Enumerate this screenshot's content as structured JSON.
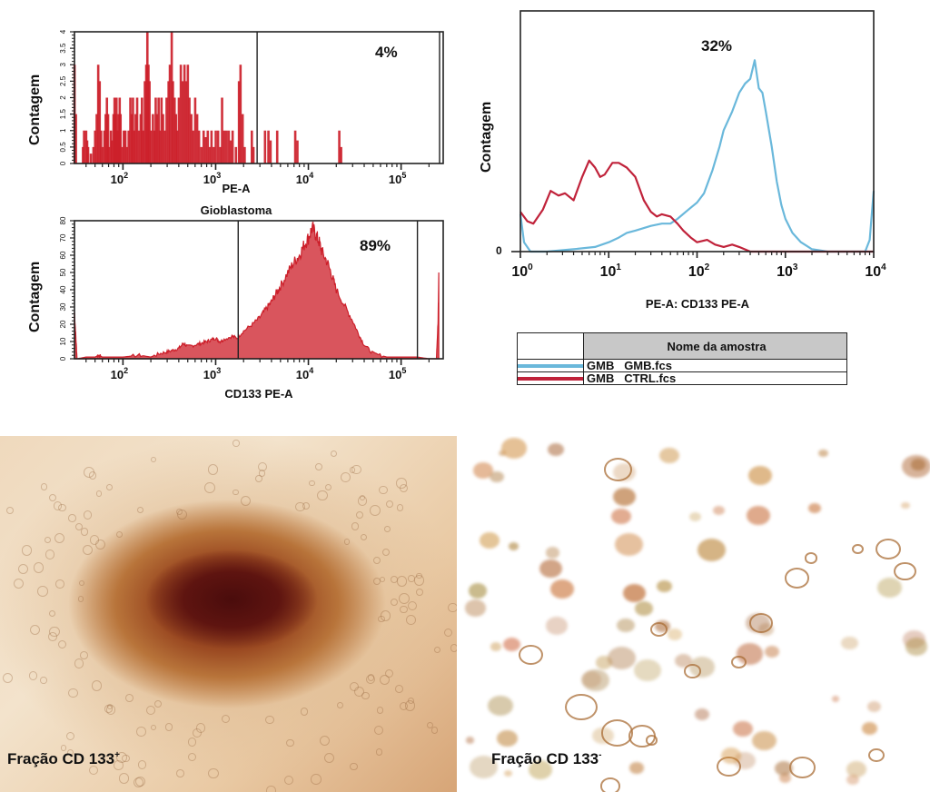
{
  "chart_data": [
    {
      "id": "gioblastoma-isotype",
      "type": "bar",
      "title": "",
      "xlabel": "PE-A",
      "ylabel": "Contagem",
      "x_scale": "log",
      "xlim": [
        30,
        260000
      ],
      "ylim": [
        0,
        4
      ],
      "x_tick_labels": [
        "10",
        "10",
        "10",
        "10"
      ],
      "x_tick_exponents": [
        "2",
        "3",
        "4",
        "5"
      ],
      "x_tick_values": [
        100,
        1000,
        10000,
        100000
      ],
      "y_tick_labels": [
        "0",
        "0.5",
        "1",
        "1.5",
        "2",
        "2.5",
        "3",
        "3.5",
        "4"
      ],
      "gate_start": 2800,
      "gate_label": "4%",
      "color": "#cc1f2a",
      "bins": [
        [
          30,
          3
        ],
        [
          31,
          1.5
        ],
        [
          37,
          0.5
        ],
        [
          38,
          1
        ],
        [
          40,
          1
        ],
        [
          41,
          0.7
        ],
        [
          42,
          0.5
        ],
        [
          45,
          0.3
        ],
        [
          48,
          0.5
        ],
        [
          50,
          1
        ],
        [
          52,
          1.5
        ],
        [
          54,
          3
        ],
        [
          56,
          2.5
        ],
        [
          58,
          1
        ],
        [
          60,
          0.5
        ],
        [
          63,
          1
        ],
        [
          65,
          1.5
        ],
        [
          67,
          2
        ],
        [
          69,
          1.5
        ],
        [
          71,
          0.5
        ],
        [
          74,
          1
        ],
        [
          76,
          0.7
        ],
        [
          79,
          1.5
        ],
        [
          81,
          2
        ],
        [
          83,
          1.5
        ],
        [
          85,
          2
        ],
        [
          87,
          1
        ],
        [
          90,
          1.5
        ],
        [
          92,
          2
        ],
        [
          94,
          1.5
        ],
        [
          98,
          0.5
        ],
        [
          102,
          1
        ],
        [
          106,
          1
        ],
        [
          110,
          0.5
        ],
        [
          115,
          1
        ],
        [
          120,
          2
        ],
        [
          124,
          1.5
        ],
        [
          128,
          2
        ],
        [
          132,
          1
        ],
        [
          137,
          1.5
        ],
        [
          142,
          2
        ],
        [
          148,
          1
        ],
        [
          155,
          1.5
        ],
        [
          160,
          2
        ],
        [
          165,
          1
        ],
        [
          172,
          2.5
        ],
        [
          178,
          3
        ],
        [
          183,
          4
        ],
        [
          188,
          3
        ],
        [
          193,
          2.5
        ],
        [
          200,
          1
        ],
        [
          210,
          1.5
        ],
        [
          218,
          1
        ],
        [
          225,
          2
        ],
        [
          233,
          1.5
        ],
        [
          242,
          2
        ],
        [
          250,
          1
        ],
        [
          260,
          2
        ],
        [
          270,
          1.5
        ],
        [
          282,
          1
        ],
        [
          295,
          2
        ],
        [
          310,
          2.5
        ],
        [
          320,
          3
        ],
        [
          335,
          4
        ],
        [
          345,
          2.5
        ],
        [
          360,
          2
        ],
        [
          372,
          1.5
        ],
        [
          385,
          1
        ],
        [
          400,
          2
        ],
        [
          420,
          3
        ],
        [
          440,
          2.5
        ],
        [
          460,
          3
        ],
        [
          480,
          2.5
        ],
        [
          500,
          3
        ],
        [
          520,
          2
        ],
        [
          545,
          1.5
        ],
        [
          570,
          1
        ],
        [
          600,
          2
        ],
        [
          630,
          1.5
        ],
        [
          660,
          1
        ],
        [
          700,
          0.5
        ],
        [
          740,
          1
        ],
        [
          780,
          0.8
        ],
        [
          820,
          1
        ],
        [
          860,
          0.5
        ],
        [
          900,
          1
        ],
        [
          950,
          0.5
        ],
        [
          1000,
          1
        ],
        [
          1060,
          1
        ],
        [
          1120,
          0.5
        ],
        [
          1170,
          2
        ],
        [
          1230,
          1
        ],
        [
          1300,
          1
        ],
        [
          1380,
          1
        ],
        [
          1450,
          0.7
        ],
        [
          1520,
          1
        ],
        [
          1650,
          0.5
        ],
        [
          1780,
          2.5
        ],
        [
          1850,
          3
        ],
        [
          1950,
          1.5
        ],
        [
          2050,
          0.5
        ],
        [
          2450,
          1
        ],
        [
          2550,
          0.5
        ],
        [
          3400,
          1
        ],
        [
          3700,
          1
        ],
        [
          3900,
          0.7
        ],
        [
          4600,
          1
        ],
        [
          7200,
          1
        ],
        [
          7600,
          0.7
        ],
        [
          21500,
          1
        ],
        [
          22500,
          0.5
        ]
      ]
    },
    {
      "id": "gioblastoma-cd133",
      "type": "area",
      "title": "Gioblastoma",
      "xlabel": "CD133 PE-A",
      "ylabel": "Contagem",
      "x_scale": "log",
      "xlim": [
        30,
        260000
      ],
      "ylim": [
        0,
        80
      ],
      "x_tick_labels": [
        "10",
        "10",
        "10",
        "10"
      ],
      "x_tick_exponents": [
        "2",
        "3",
        "4",
        "5"
      ],
      "x_tick_values": [
        100,
        1000,
        10000,
        100000
      ],
      "y_tick_labels": [
        "0",
        "10",
        "20",
        "30",
        "40",
        "50",
        "60",
        "70",
        "80"
      ],
      "gate_start": 1750,
      "gate_end": 150000,
      "gate_label": "89%",
      "color": "#cc1f2a",
      "fill": "#d9555d",
      "points": [
        [
          30,
          27
        ],
        [
          31,
          13
        ],
        [
          32,
          0
        ],
        [
          40,
          1
        ],
        [
          50,
          1
        ],
        [
          55,
          2
        ],
        [
          60,
          1
        ],
        [
          80,
          1
        ],
        [
          100,
          1
        ],
        [
          150,
          2
        ],
        [
          200,
          1
        ],
        [
          250,
          3
        ],
        [
          300,
          4
        ],
        [
          350,
          5
        ],
        [
          400,
          6
        ],
        [
          450,
          9
        ],
        [
          500,
          7
        ],
        [
          600,
          8
        ],
        [
          700,
          9
        ],
        [
          800,
          10
        ],
        [
          900,
          11
        ],
        [
          1000,
          12
        ],
        [
          1100,
          10
        ],
        [
          1200,
          11
        ],
        [
          1500,
          13
        ],
        [
          1700,
          12
        ],
        [
          2000,
          16
        ],
        [
          2500,
          20
        ],
        [
          3000,
          24
        ],
        [
          3500,
          29
        ],
        [
          4000,
          33
        ],
        [
          4500,
          38
        ],
        [
          5000,
          42
        ],
        [
          6000,
          50
        ],
        [
          7000,
          56
        ],
        [
          8000,
          60
        ],
        [
          9000,
          66
        ],
        [
          10000,
          70
        ],
        [
          11000,
          76
        ],
        [
          12000,
          72
        ],
        [
          13000,
          68
        ],
        [
          14000,
          62
        ],
        [
          16000,
          56
        ],
        [
          18000,
          48
        ],
        [
          20000,
          40
        ],
        [
          25000,
          30
        ],
        [
          30000,
          22
        ],
        [
          35000,
          14
        ],
        [
          40000,
          8
        ],
        [
          50000,
          3
        ],
        [
          70000,
          1
        ],
        [
          100000,
          1
        ],
        [
          150000,
          1
        ],
        [
          200000,
          0
        ],
        [
          240000,
          0
        ],
        [
          250000,
          20
        ],
        [
          255000,
          50
        ]
      ]
    },
    {
      "id": "cd133-overlay",
      "type": "line",
      "title": "",
      "xlabel": "PE-A: CD133 PE-A",
      "ylabel": "Contagem",
      "x_scale": "log",
      "xlim": [
        1,
        10000
      ],
      "ylim": [
        0,
        100
      ],
      "x_tick_labels": [
        "10",
        "10",
        "10",
        "10",
        "10"
      ],
      "x_tick_exponents": [
        "0",
        "1",
        "2",
        "3",
        "4"
      ],
      "x_tick_values": [
        1,
        10,
        100,
        1000,
        10000
      ],
      "y_tick_labels": [
        "0"
      ],
      "gate_label": "32%",
      "series": [
        {
          "name": "GMB GMB.fcs",
          "color": "#6ab8db",
          "points": [
            [
              1,
              16
            ],
            [
              1.1,
              4
            ],
            [
              1.3,
              0
            ],
            [
              2,
              0
            ],
            [
              4,
              1
            ],
            [
              7,
              2
            ],
            [
              10,
              4
            ],
            [
              13,
              6
            ],
            [
              16,
              8
            ],
            [
              20,
              9
            ],
            [
              30,
              11
            ],
            [
              40,
              12
            ],
            [
              50,
              12
            ],
            [
              60,
              14
            ],
            [
              80,
              18
            ],
            [
              100,
              21
            ],
            [
              120,
              25
            ],
            [
              150,
              35
            ],
            [
              180,
              45
            ],
            [
              200,
              52
            ],
            [
              250,
              60
            ],
            [
              300,
              68
            ],
            [
              350,
              72
            ],
            [
              400,
              74
            ],
            [
              450,
              82
            ],
            [
              500,
              70
            ],
            [
              550,
              68
            ],
            [
              600,
              60
            ],
            [
              700,
              45
            ],
            [
              800,
              30
            ],
            [
              900,
              20
            ],
            [
              1000,
              14
            ],
            [
              1200,
              8
            ],
            [
              1500,
              4
            ],
            [
              2000,
              1
            ],
            [
              3000,
              0
            ],
            [
              8000,
              0
            ],
            [
              9000,
              5
            ],
            [
              10000,
              26
            ]
          ]
        },
        {
          "name": "GMB CTRL.fcs",
          "color": "#c0223a",
          "points": [
            [
              1,
              17
            ],
            [
              1.2,
              13
            ],
            [
              1.4,
              12
            ],
            [
              1.8,
              18
            ],
            [
              2.2,
              26
            ],
            [
              2.7,
              24
            ],
            [
              3.2,
              25
            ],
            [
              4,
              22
            ],
            [
              5,
              32
            ],
            [
              6,
              39
            ],
            [
              7,
              36
            ],
            [
              8,
              32
            ],
            [
              9,
              33
            ],
            [
              11,
              38
            ],
            [
              13,
              38
            ],
            [
              16,
              36
            ],
            [
              20,
              32
            ],
            [
              25,
              22
            ],
            [
              30,
              17
            ],
            [
              35,
              15
            ],
            [
              40,
              16
            ],
            [
              50,
              15
            ],
            [
              60,
              12
            ],
            [
              70,
              9
            ],
            [
              85,
              6
            ],
            [
              100,
              4
            ],
            [
              130,
              5
            ],
            [
              160,
              3
            ],
            [
              200,
              2
            ],
            [
              250,
              3
            ],
            [
              300,
              2
            ],
            [
              400,
              0
            ],
            [
              10000,
              0
            ]
          ]
        }
      ]
    }
  ],
  "figure": {
    "top_left": {
      "y_axis_title": "Contagem",
      "x_axis_title": "PE-A",
      "gate_percent": "4%",
      "section_title": "Gioblastoma"
    },
    "bottom_left": {
      "y_axis_title": "Contagem",
      "x_axis_title": "CD133 PE-A",
      "gate_percent": "89%"
    },
    "right": {
      "y_axis_title": "Contagem",
      "x_axis_title": "PE-A: CD133 PE-A",
      "gate_percent": "32%",
      "y_zero_label": "0"
    },
    "legend": {
      "header": "Nome da amostra",
      "rows": [
        {
          "sample": "GMB",
          "file": "GMB.fcs",
          "color": "#6ab8db"
        },
        {
          "sample": "GMB",
          "file": "CTRL.fcs",
          "color": "#c0223a"
        }
      ]
    },
    "photos": [
      {
        "caption": "Fração CD 133",
        "superscript": "+",
        "description": "CD133-positive sphere micrograph"
      },
      {
        "caption": "Fração CD 133",
        "superscript": "-",
        "description": "CD133-negative cells micrograph"
      }
    ]
  }
}
